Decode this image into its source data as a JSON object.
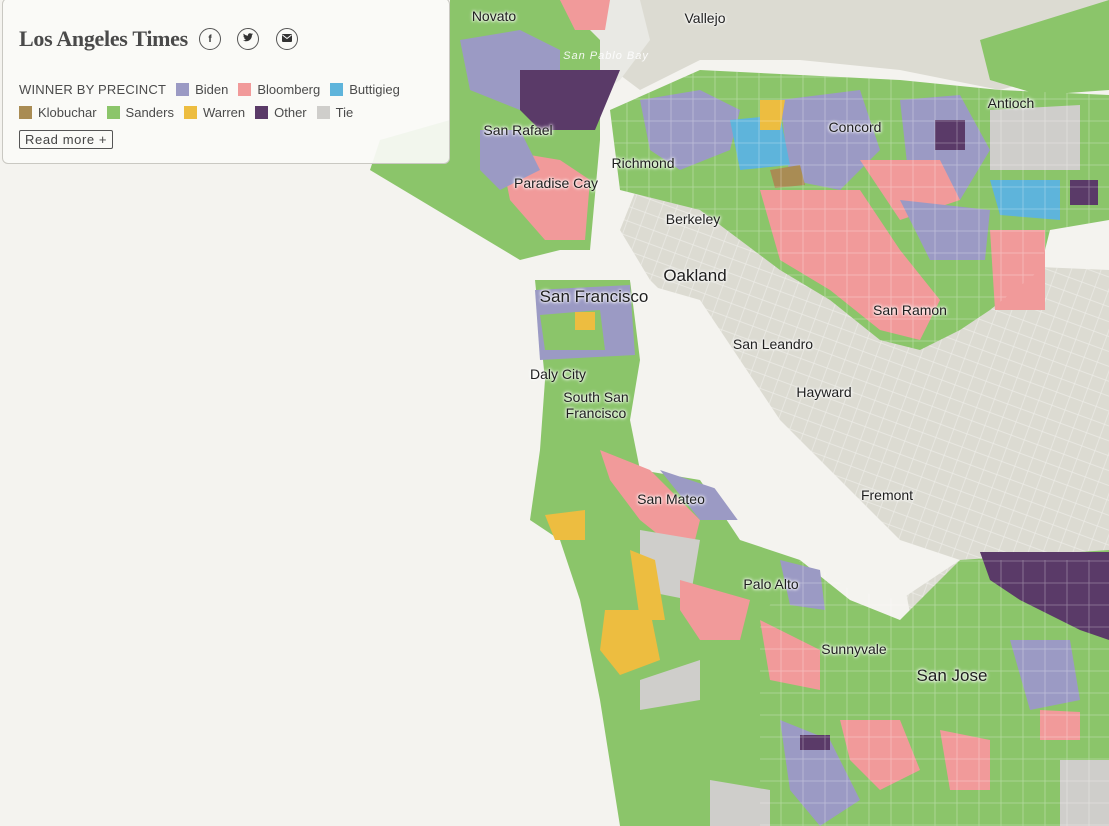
{
  "brand": "Los Angeles Times",
  "share": {
    "facebook_icon": "f",
    "twitter_icon": "t",
    "email_icon": "✉"
  },
  "legend": {
    "title": "WINNER BY PRECINCT",
    "items": [
      {
        "label": "Biden",
        "color": "#9b9ac4"
      },
      {
        "label": "Bloomberg",
        "color": "#f19a9a"
      },
      {
        "label": "Buttigieg",
        "color": "#5eb4db"
      },
      {
        "label": "Klobuchar",
        "color": "#a98c54"
      },
      {
        "label": "Sanders",
        "color": "#8bc56a"
      },
      {
        "label": "Warren",
        "color": "#edbd40"
      },
      {
        "label": "Other",
        "color": "#5a3a68"
      },
      {
        "label": "Tie",
        "color": "#cfcecb"
      }
    ]
  },
  "read_more": "Read more +",
  "cities": {
    "novato": "Novato",
    "vallejo": "Vallejo",
    "san_pablo_bay": "San Pablo Bay",
    "san_rafael": "San Rafael",
    "richmond": "Richmond",
    "concord": "Concord",
    "antioch": "Antioch",
    "paradise_cay": "Paradise Cay",
    "berkeley": "Berkeley",
    "oakland": "Oakland",
    "san_francisco": "San Francisco",
    "san_ramon": "San Ramon",
    "san_leandro": "San Leandro",
    "daly_city": "Daly City",
    "south_san_francisco": "South San Francisco",
    "hayward": "Hayward",
    "san_mateo": "San Mateo",
    "fremont": "Fremont",
    "palo_alto": "Palo Alto",
    "sunnyvale": "Sunnyvale",
    "san_jose": "San Jose"
  }
}
